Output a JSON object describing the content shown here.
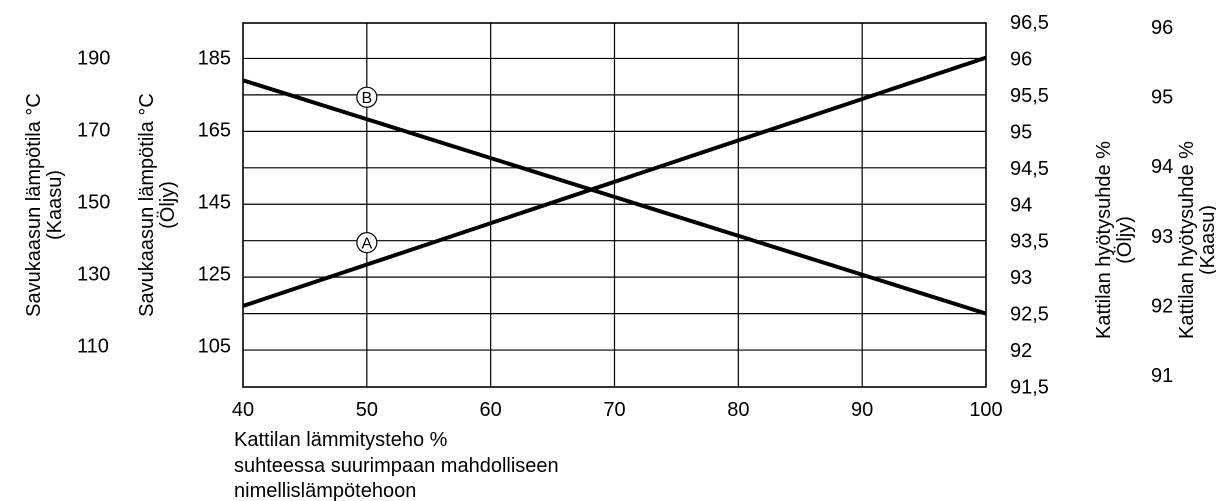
{
  "chart_data": {
    "type": "line",
    "x": [
      40,
      100
    ],
    "xlim": [
      40,
      100
    ],
    "x_ticks": [
      "40",
      "50",
      "60",
      "70",
      "80",
      "90",
      "100"
    ],
    "xlabel_lines": [
      "Kattilan lämmitysteho %",
      "suhteessa suurimpaan mahdolliseen",
      "nimellislämpötehoon"
    ],
    "y_left_oil": {
      "label_lines": [
        "Savukaasun lämpötila °C",
        "(Öljy)"
      ],
      "ticks": [
        "185",
        "165",
        "145",
        "125",
        "105"
      ],
      "tick_values": [
        185,
        165,
        145,
        125,
        105
      ]
    },
    "y_left_gas": {
      "label_lines": [
        "Savukaasun lämpötila °C",
        "(Kaasu)"
      ],
      "ticks": [
        "190",
        "170",
        "150",
        "130",
        "110"
      ],
      "tick_values": [
        190,
        170,
        150,
        130,
        110
      ]
    },
    "y_right_oil": {
      "label_lines": [
        "Kattilan hyötysuhde %",
        "(Öljy)"
      ],
      "ticks": [
        "96,5",
        "96",
        "95,5",
        "95",
        "94,5",
        "94",
        "93,5",
        "93",
        "92,5",
        "92",
        "91,5"
      ],
      "tick_values": [
        96.5,
        96,
        95.5,
        95,
        94.5,
        94,
        93.5,
        93,
        92.5,
        92,
        91.5
      ]
    },
    "y_right_gas": {
      "label_lines": [
        "Kattilan hyötysuhde %",
        "(Kaasu)"
      ],
      "ticks": [
        "96",
        "95",
        "94",
        "93",
        "92",
        "91"
      ],
      "tick_values": [
        96,
        95,
        94,
        93,
        92,
        91
      ]
    },
    "series": [
      {
        "name": "A",
        "axis": "y_left_oil",
        "x": [
          40,
          100
        ],
        "values": [
          116,
          185
        ]
      },
      {
        "name": "B",
        "axis": "y_right_oil",
        "x": [
          40,
          100
        ],
        "values": [
          95.7,
          92.5
        ]
      }
    ],
    "grid": true
  }
}
